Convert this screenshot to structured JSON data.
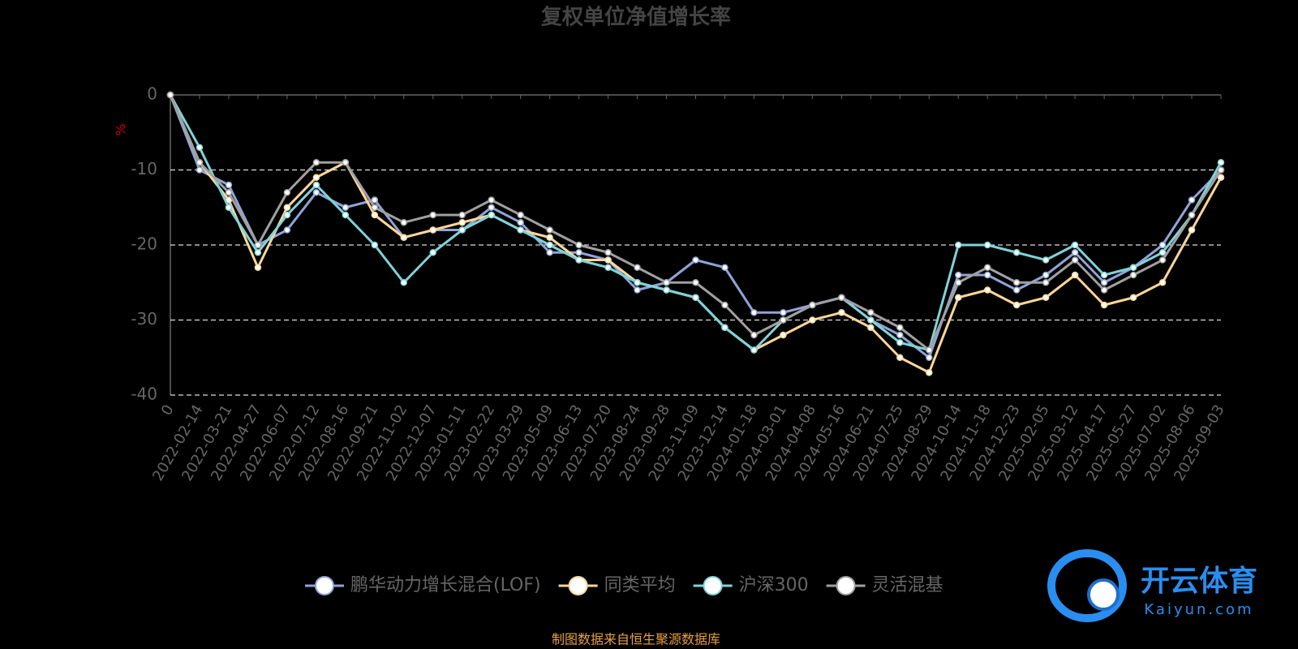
{
  "chart_data": {
    "type": "line",
    "title": "复权单位净值增长率",
    "y_label": "%",
    "categories": [
      "0",
      "2022-02-14",
      "2022-03-21",
      "2022-04-27",
      "2022-06-07",
      "2022-07-12",
      "2022-08-16",
      "2022-09-21",
      "2022-11-02",
      "2022-12-07",
      "2023-01-11",
      "2023-02-22",
      "2023-03-29",
      "2023-05-09",
      "2023-06-13",
      "2023-07-20",
      "2023-08-24",
      "2023-09-28",
      "2023-11-09",
      "2023-12-14",
      "2024-01-18",
      "2024-03-01",
      "2024-04-08",
      "2024-05-16",
      "2024-06-21",
      "2024-07-25",
      "2024-08-29",
      "2024-10-14",
      "2024-11-18",
      "2024-12-23",
      "2025-02-05",
      "2025-03-12",
      "2025-04-17",
      "2025-05-27",
      "2025-07-02",
      "2025-08-06",
      "2025-09-03"
    ],
    "series": [
      {
        "name": "鹏华动力增长混合(LOF)",
        "color": "#8fa4d8",
        "values": [
          0,
          -10,
          -12,
          -20,
          -18,
          -13,
          -15,
          -14,
          -19,
          -18,
          -18,
          -15,
          -17,
          -21,
          -21,
          -22,
          -26,
          -25,
          -22,
          -23,
          -29,
          -29,
          -28,
          -27,
          -30,
          -32,
          -35,
          -24,
          -24,
          -26,
          -24,
          -21,
          -25,
          -23,
          -20,
          -14,
          -10
        ]
      },
      {
        "name": "同类平均",
        "color": "#ffd699",
        "values": [
          0,
          -9,
          -14,
          -23,
          -15,
          -11,
          -9,
          -16,
          -19,
          -18,
          -17,
          -16,
          -18,
          -19,
          -22,
          -22,
          -25,
          -26,
          -27,
          -31,
          -34,
          -32,
          -30,
          -29,
          -31,
          -35,
          -37,
          -27,
          -26,
          -28,
          -27,
          -24,
          -28,
          -27,
          -25,
          -18,
          -11
        ]
      },
      {
        "name": "沪深300",
        "color": "#7fd3d9",
        "values": [
          0,
          -7,
          -15,
          -21,
          -16,
          -12,
          -16,
          -20,
          -25,
          -21,
          -18,
          -16,
          -18,
          -20,
          -22,
          -23,
          -25,
          -26,
          -27,
          -31,
          -34,
          -30,
          -28,
          -27,
          -30,
          -33,
          -34,
          -20,
          -20,
          -21,
          -22,
          -20,
          -24,
          -23,
          -21,
          -16,
          -9
        ]
      },
      {
        "name": "灵活混基",
        "color": "#a0a0a0",
        "values": [
          0,
          -9,
          -13,
          -20,
          -13,
          -9,
          -9,
          -15,
          -17,
          -16,
          -16,
          -14,
          -16,
          -18,
          -20,
          -21,
          -23,
          -25,
          -25,
          -28,
          -32,
          -30,
          -28,
          -27,
          -29,
          -31,
          -34,
          -25,
          -23,
          -25,
          -25,
          -22,
          -26,
          -24,
          -22,
          -16,
          -10
        ]
      }
    ],
    "ylim": [
      -40,
      0
    ],
    "yticks": [
      0,
      -10,
      -20,
      -30,
      -40
    ],
    "grid": true
  },
  "footer": "制图数据来自恒生聚源数据库",
  "watermark": {
    "name": "开云体育",
    "url": "Kaiyun.com"
  }
}
